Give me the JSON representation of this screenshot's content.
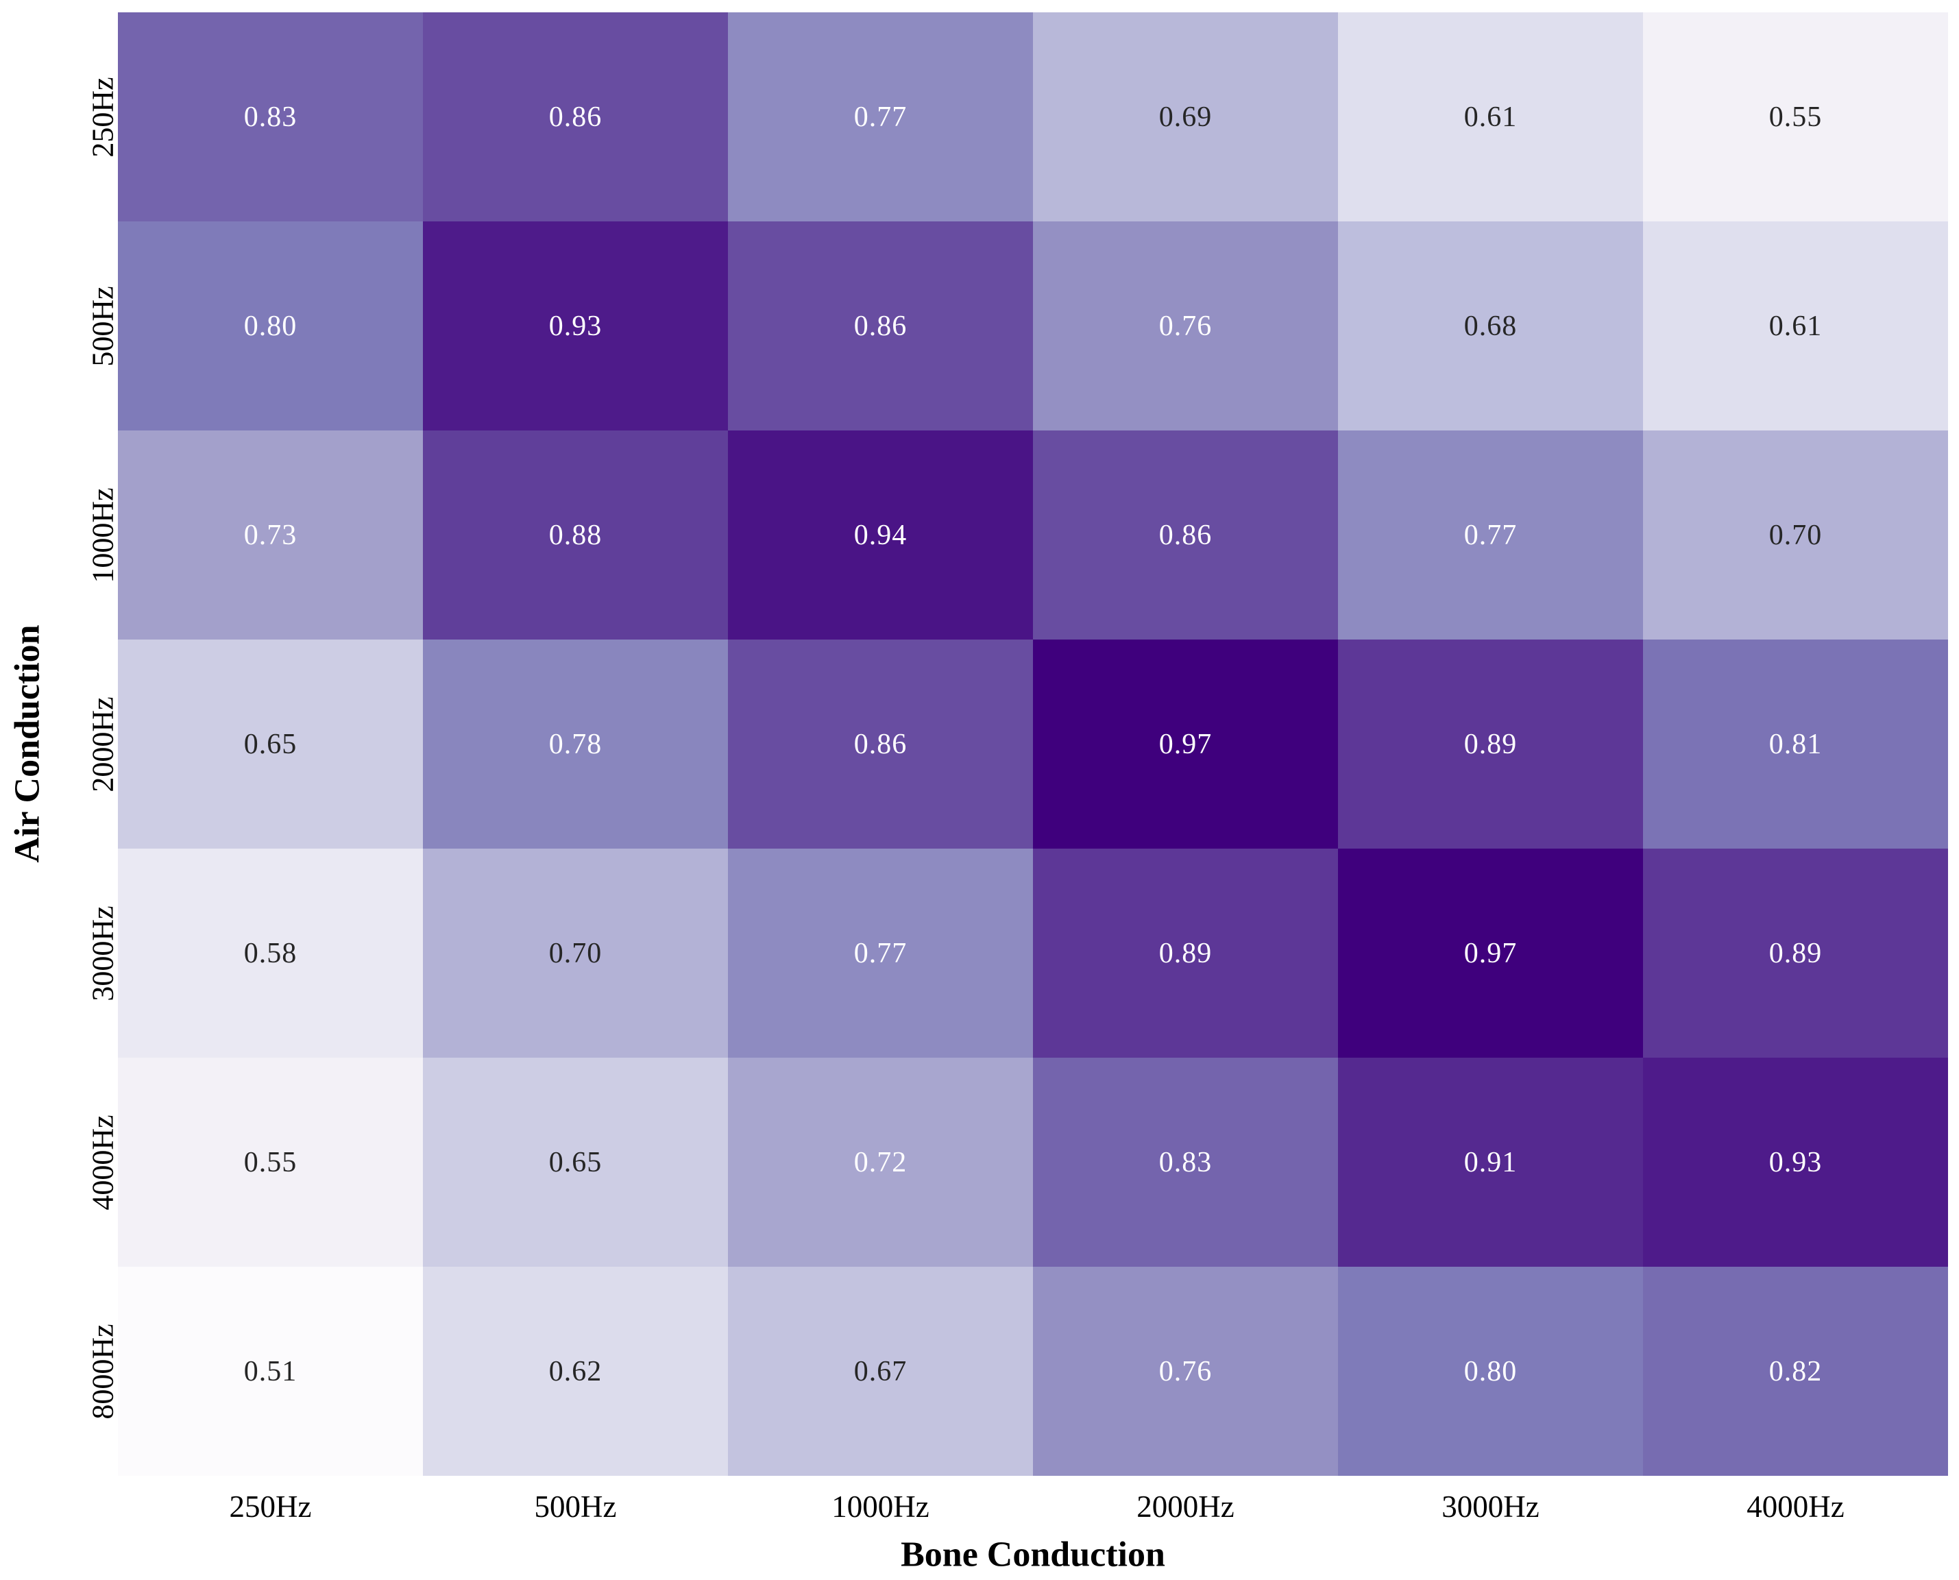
{
  "chart_data": {
    "type": "heatmap",
    "xlabel": "Bone Conduction",
    "ylabel": "Air Conduction",
    "x_categories": [
      "250Hz",
      "500Hz",
      "1000Hz",
      "2000Hz",
      "3000Hz",
      "4000Hz"
    ],
    "y_categories": [
      "250Hz",
      "500Hz",
      "1000Hz",
      "2000Hz",
      "3000Hz",
      "4000Hz",
      "8000Hz"
    ],
    "values": [
      [
        0.83,
        0.86,
        0.77,
        0.69,
        0.61,
        0.55
      ],
      [
        0.8,
        0.93,
        0.86,
        0.76,
        0.68,
        0.61
      ],
      [
        0.73,
        0.88,
        0.94,
        0.86,
        0.77,
        0.7
      ],
      [
        0.65,
        0.78,
        0.86,
        0.97,
        0.89,
        0.81
      ],
      [
        0.58,
        0.7,
        0.77,
        0.89,
        0.97,
        0.89
      ],
      [
        0.55,
        0.65,
        0.72,
        0.83,
        0.91,
        0.93
      ],
      [
        0.51,
        0.62,
        0.67,
        0.76,
        0.8,
        0.82
      ]
    ],
    "value_decimals": 2,
    "grid": false,
    "legend": "none",
    "colormap": {
      "name": "Purples",
      "vmin": 0.51,
      "vmax": 0.97,
      "anchors": [
        "#fcfbfd",
        "#efedf5",
        "#dadaeb",
        "#bcbddc",
        "#9e9ac8",
        "#807dba",
        "#6a51a3",
        "#54278f",
        "#3f007d"
      ]
    },
    "annotation_colors": {
      "light_text": "#ffffff",
      "dark_text": "#262626",
      "luminance_threshold": 0.408
    },
    "background": "#ffffff"
  }
}
